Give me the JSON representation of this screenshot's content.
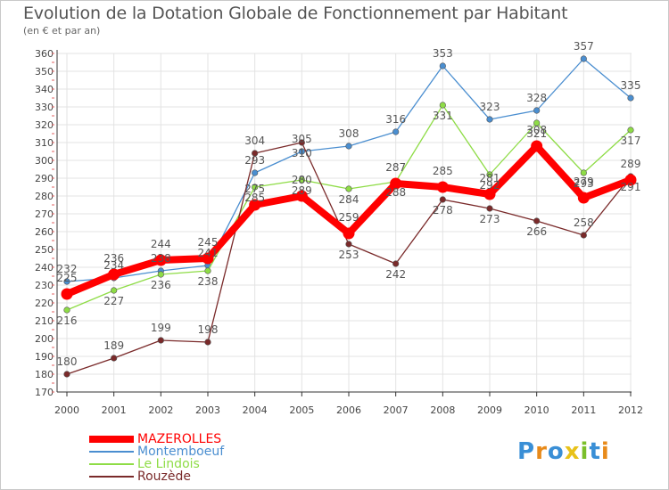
{
  "title": "Evolution de la Dotation Globale de Fonctionnement par Habitant",
  "subtitle": "(en € et par an)",
  "logo": {
    "letters": [
      "P",
      "r",
      "o",
      "x",
      "i",
      "t",
      "i"
    ],
    "colors": [
      "#3a8fd6",
      "#e88a1a",
      "#3a8fd6",
      "#e8c21a",
      "#7bbf2a",
      "#3a8fd6",
      "#e88a1a"
    ]
  },
  "chart_data": {
    "type": "line",
    "title": "Evolution de la Dotation Globale de Fonctionnement par Habitant",
    "subtitle": "(en € et par an)",
    "xlabel": "",
    "ylabel": "",
    "ylim": [
      170,
      360
    ],
    "yticks": [
      170,
      180,
      190,
      200,
      210,
      220,
      230,
      240,
      250,
      260,
      270,
      280,
      290,
      300,
      310,
      320,
      330,
      340,
      350,
      360
    ],
    "categories": [
      "2000",
      "2001",
      "2002",
      "2003",
      "2004",
      "2005",
      "2006",
      "2007",
      "2008",
      "2009",
      "2010",
      "2011",
      "2012"
    ],
    "grid": true,
    "legend_position": "bottom-left",
    "series": [
      {
        "name": "MAZEROLLES",
        "color": "#ff0000",
        "values": [
          225,
          236,
          244,
          245,
          275,
          280,
          259,
          287,
          285,
          281,
          308,
          279,
          289
        ]
      },
      {
        "name": "Montemboeuf",
        "color": "#4a8ed0",
        "values": [
          232,
          234,
          238,
          241,
          293,
          305,
          308,
          316,
          353,
          323,
          328,
          357,
          335
        ]
      },
      {
        "name": "Le Lindois",
        "color": "#8edc46",
        "values": [
          216,
          227,
          236,
          238,
          285,
          289,
          284,
          288,
          331,
          292,
          321,
          293,
          317
        ]
      },
      {
        "name": "Rouzède",
        "color": "#7a2a2a",
        "values": [
          180,
          189,
          199,
          198,
          304,
          310,
          253,
          242,
          278,
          273,
          266,
          258,
          291
        ]
      }
    ]
  }
}
